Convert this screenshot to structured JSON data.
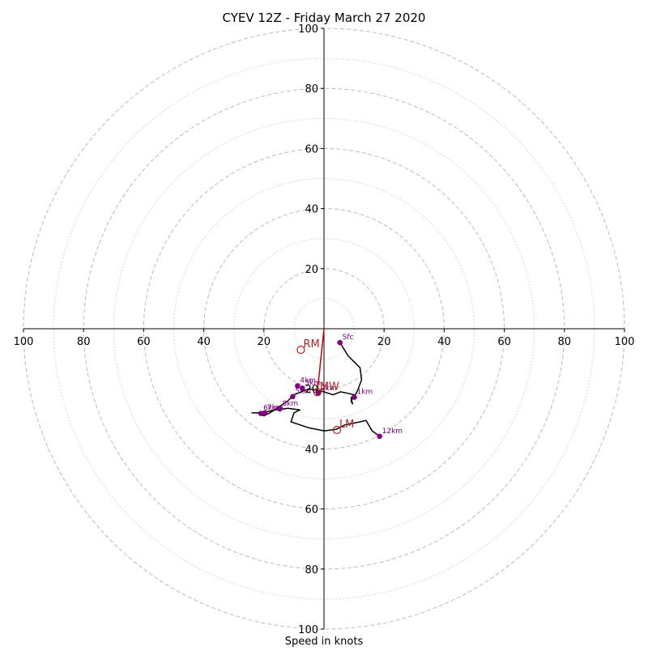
{
  "chart_data": {
    "type": "hodograph",
    "title": "CYEV 12Z - Friday March 27 2020",
    "xlabel": "Speed in knots",
    "units": "knots",
    "range": [
      -100,
      100
    ],
    "ring_major": [
      20,
      40,
      60,
      80,
      100
    ],
    "ring_minor": [
      10,
      30,
      50,
      70,
      90
    ],
    "x_ticks": [
      -100,
      -80,
      -60,
      -40,
      -20,
      20,
      40,
      60,
      80,
      100
    ],
    "x_tick_labels": [
      "100",
      "80",
      "60",
      "40",
      "20",
      "20",
      "40",
      "60",
      "80",
      "100"
    ],
    "y_ticks": [
      100,
      80,
      60,
      40,
      20,
      -20,
      -40,
      -60,
      -80,
      -100
    ],
    "y_tick_labels": [
      "100",
      "80",
      "60",
      "40",
      "20",
      "20",
      "40",
      "60",
      "80",
      "100"
    ],
    "hodograph_trace": [
      [
        5.3,
        -4.6
      ],
      [
        8,
        -9
      ],
      [
        12,
        -13
      ],
      [
        12.5,
        -17
      ],
      [
        11,
        -21
      ],
      [
        9,
        -24
      ],
      [
        9.5,
        -25
      ],
      [
        9,
        -23
      ],
      [
        10,
        -22
      ],
      [
        8,
        -21.5
      ],
      [
        5.5,
        -21
      ],
      [
        3,
        -22
      ],
      [
        0,
        -21
      ],
      [
        -5,
        -20
      ],
      [
        -10,
        -22
      ],
      [
        -12,
        -24
      ],
      [
        -15,
        -26
      ],
      [
        -18,
        -28
      ],
      [
        -20,
        -29
      ],
      [
        -22,
        -28
      ],
      [
        -24,
        -28
      ],
      [
        -21,
        -28
      ],
      [
        -16,
        -27
      ],
      [
        -12,
        -26.5
      ],
      [
        -8,
        -27
      ],
      [
        -10,
        -28
      ],
      [
        -11,
        -31
      ],
      [
        -8,
        -32
      ],
      [
        -5,
        -33
      ],
      [
        0,
        -34
      ],
      [
        4,
        -33.5
      ],
      [
        7,
        -32
      ],
      [
        12,
        -31
      ],
      [
        14,
        -30.5
      ],
      [
        16,
        -34
      ],
      [
        18.5,
        -35.8
      ]
    ],
    "height_markers": [
      {
        "label": "Sfc",
        "u": 5.3,
        "v": -4.6
      },
      {
        "label": "1km",
        "u": 10.1,
        "v": -22.8
      },
      {
        "label": "2km",
        "u": -1.9,
        "v": -21.5
      },
      {
        "label": "3km",
        "u": -7.2,
        "v": -19.8
      },
      {
        "label": "4km",
        "u": -8.8,
        "v": -19.0
      },
      {
        "label": "5km",
        "u": -10.4,
        "v": -22.6
      },
      {
        "label": "6km",
        "u": -21.0,
        "v": -28.2
      },
      {
        "label": "7km",
        "u": -19.7,
        "v": -28.0
      },
      {
        "label": "8km",
        "u": -14.7,
        "v": -26.7
      },
      {
        "label": "12km",
        "u": 18.5,
        "v": -35.8
      }
    ],
    "storm_markers": [
      {
        "label": "RM",
        "u": -7.7,
        "v": -7.0
      },
      {
        "label": "LM",
        "u": 4.3,
        "v": -33.7
      },
      {
        "label": "MW",
        "u": -2.2,
        "v": -21.1
      }
    ],
    "shear_vector": {
      "from": [
        0,
        0
      ],
      "to": [
        -2.2,
        -21.1
      ]
    },
    "colors": {
      "trace": "#000000",
      "markers": "#800080",
      "storm": "#b22222",
      "shear": "#d00000",
      "ring_major": "#bbbbbb",
      "ring_minor": "#cccccc",
      "title": "#000000"
    }
  }
}
